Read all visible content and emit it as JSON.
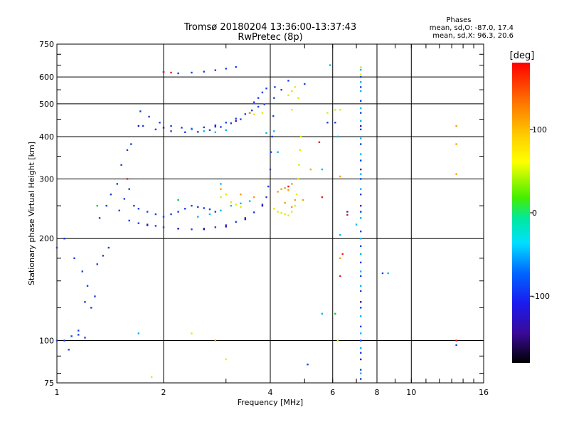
{
  "header": {
    "title": "Tromsø 20180204 13:36:00-13:37:43",
    "subtitle": "RwPretec (8p)",
    "stats_title": "Phases",
    "stats_o": "mean, sd,O: -87.0, 17.4",
    "stats_x": "mean, sd,X:  96.3, 20.6"
  },
  "chart_data": {
    "type": "scatter",
    "xlabel": "Frequency [MHz]",
    "ylabel": "Stationary phase Virtual Height [km]",
    "x_scale": "log",
    "y_scale": "log",
    "xlim": [
      1,
      16
    ],
    "ylim": [
      75,
      750
    ],
    "grid": true,
    "x_ticks": [
      1,
      2,
      4,
      6,
      8,
      10,
      16
    ],
    "x_tick_labels": [
      "1",
      "2",
      "4",
      "6",
      "8",
      "10",
      "16"
    ],
    "y_ticks": [
      75,
      100,
      200,
      300,
      400,
      500,
      600,
      750
    ],
    "y_tick_labels": [
      "75",
      "100",
      "200",
      "300",
      "400",
      "500",
      "600",
      "750"
    ],
    "colorbar": {
      "label": "[deg]",
      "range": [
        -180,
        180
      ],
      "ticks": [
        100,
        0,
        -100
      ],
      "tick_labels": [
        "100",
        "0",
        "-100"
      ]
    },
    "series": [
      {
        "color": "#1a3fe0",
        "points": [
          [
            1.0,
            100
          ],
          [
            1.05,
            100
          ],
          [
            1.1,
            103
          ],
          [
            1.15,
            104
          ],
          [
            1.2,
            102
          ],
          [
            1.15,
            107
          ],
          [
            1.08,
            94
          ],
          [
            1.0,
            188
          ],
          [
            1.05,
            200
          ],
          [
            1.12,
            175
          ],
          [
            1.18,
            160
          ],
          [
            1.22,
            145
          ],
          [
            1.28,
            135
          ],
          [
            1.3,
            168
          ],
          [
            1.35,
            178
          ],
          [
            1.4,
            188
          ],
          [
            1.25,
            125
          ],
          [
            1.2,
            130
          ],
          [
            1.32,
            230
          ],
          [
            1.38,
            250
          ],
          [
            1.42,
            270
          ],
          [
            1.48,
            290
          ],
          [
            1.52,
            330
          ],
          [
            1.58,
            365
          ],
          [
            1.62,
            380
          ],
          [
            1.5,
            242
          ],
          [
            1.55,
            262
          ],
          [
            1.6,
            280
          ],
          [
            1.65,
            250
          ],
          [
            1.7,
            245
          ],
          [
            1.8,
            240
          ],
          [
            1.9,
            236
          ],
          [
            2.0,
            232
          ],
          [
            2.1,
            236
          ],
          [
            2.2,
            240
          ],
          [
            2.3,
            245
          ],
          [
            2.4,
            250
          ],
          [
            2.5,
            248
          ],
          [
            2.6,
            246
          ],
          [
            2.7,
            244
          ],
          [
            2.8,
            240
          ],
          [
            1.6,
            226
          ],
          [
            1.7,
            222
          ],
          [
            1.8,
            220
          ],
          [
            1.9,
            218
          ],
          [
            2.0,
            216
          ],
          [
            2.2,
            214
          ],
          [
            2.4,
            213
          ],
          [
            2.6,
            214
          ],
          [
            2.8,
            216
          ],
          [
            3.0,
            219
          ],
          [
            3.2,
            224
          ],
          [
            3.4,
            230
          ],
          [
            3.6,
            239
          ],
          [
            3.8,
            252
          ],
          [
            3.9,
            265
          ],
          [
            3.95,
            285
          ],
          [
            4.0,
            320
          ],
          [
            4.02,
            360
          ],
          [
            4.05,
            400
          ],
          [
            4.08,
            460
          ],
          [
            4.1,
            520
          ],
          [
            4.12,
            560
          ],
          [
            1.72,
            475
          ],
          [
            1.82,
            458
          ],
          [
            1.95,
            440
          ],
          [
            2.1,
            430
          ],
          [
            2.25,
            425
          ],
          [
            2.4,
            422
          ],
          [
            2.6,
            426
          ],
          [
            2.8,
            432
          ],
          [
            3.0,
            440
          ],
          [
            3.2,
            452
          ],
          [
            3.4,
            466
          ],
          [
            3.55,
            478
          ],
          [
            3.7,
            490
          ],
          [
            3.85,
            498
          ],
          [
            1.75,
            430
          ],
          [
            1.9,
            420
          ],
          [
            2.1,
            415
          ],
          [
            2.3,
            412
          ],
          [
            2.5,
            413
          ],
          [
            2.7,
            418
          ],
          [
            2.9,
            427
          ],
          [
            3.1,
            438
          ],
          [
            3.3,
            450
          ],
          [
            2.0,
            620
          ],
          [
            2.2,
            615
          ],
          [
            2.4,
            618
          ],
          [
            2.6,
            622
          ],
          [
            2.8,
            628
          ],
          [
            3.0,
            635
          ],
          [
            3.2,
            642
          ],
          [
            3.6,
            505
          ],
          [
            3.7,
            520
          ],
          [
            3.8,
            540
          ],
          [
            3.9,
            555
          ],
          [
            4.3,
            550
          ],
          [
            4.5,
            585
          ],
          [
            5.0,
            572
          ],
          [
            7.2,
            640
          ],
          [
            7.2,
            600
          ],
          [
            7.2,
            560
          ],
          [
            7.2,
            510
          ],
          [
            7.2,
            470
          ],
          [
            7.2,
            420
          ],
          [
            7.2,
            380
          ],
          [
            7.2,
            340
          ],
          [
            7.2,
            300
          ],
          [
            7.2,
            270
          ],
          [
            7.2,
            240
          ],
          [
            7.2,
            210
          ],
          [
            7.2,
            190
          ],
          [
            7.2,
            170
          ],
          [
            7.2,
            155
          ],
          [
            7.2,
            140
          ],
          [
            7.2,
            125
          ],
          [
            7.2,
            110
          ],
          [
            7.2,
            100
          ],
          [
            7.2,
            92
          ],
          [
            7.2,
            82
          ],
          [
            7.2,
            77
          ],
          [
            5.8,
            440
          ],
          [
            6.1,
            440
          ],
          [
            6.6,
            240
          ],
          [
            8.3,
            158
          ],
          [
            13.4,
            97
          ],
          [
            5.1,
            85
          ]
        ]
      },
      {
        "color": "#3b0ea6",
        "points": [
          [
            1.7,
            430
          ],
          [
            2.0,
            425
          ],
          [
            2.4,
            420
          ],
          [
            2.8,
            428
          ],
          [
            3.2,
            445
          ],
          [
            3.5,
            470
          ],
          [
            1.8,
            219
          ],
          [
            2.2,
            214
          ],
          [
            2.6,
            213
          ],
          [
            3.0,
            217
          ],
          [
            3.4,
            228
          ],
          [
            3.8,
            250
          ],
          [
            7.2,
            430
          ],
          [
            7.2,
            320
          ],
          [
            7.2,
            250
          ],
          [
            7.2,
            130
          ],
          [
            7.2,
            88
          ]
        ]
      },
      {
        "color": "#00b8f0",
        "points": [
          [
            2.4,
            420
          ],
          [
            2.6,
            415
          ],
          [
            2.8,
            412
          ],
          [
            3.0,
            418
          ],
          [
            2.5,
            232
          ],
          [
            2.7,
            236
          ],
          [
            2.9,
            242
          ],
          [
            3.1,
            250
          ],
          [
            3.3,
            254
          ],
          [
            3.5,
            258
          ],
          [
            3.9,
            410
          ],
          [
            4.1,
            415
          ],
          [
            4.2,
            360
          ],
          [
            7.2,
            630
          ],
          [
            7.2,
            580
          ],
          [
            7.2,
            545
          ],
          [
            7.2,
            485
          ],
          [
            7.2,
            445
          ],
          [
            7.2,
            395
          ],
          [
            7.2,
            355
          ],
          [
            7.2,
            310
          ],
          [
            7.2,
            280
          ],
          [
            7.2,
            230
          ],
          [
            7.2,
            200
          ],
          [
            7.2,
            180
          ],
          [
            7.2,
            160
          ],
          [
            7.2,
            145
          ],
          [
            7.2,
            118
          ],
          [
            7.2,
            105
          ],
          [
            7.2,
            95
          ],
          [
            7.2,
            80
          ],
          [
            5.6,
            320
          ],
          [
            5.6,
            120
          ],
          [
            5.9,
            650
          ],
          [
            6.2,
            400
          ],
          [
            6.3,
            205
          ],
          [
            7.0,
            220
          ],
          [
            2.9,
            290
          ],
          [
            8.6,
            158
          ],
          [
            1.7,
            105
          ]
        ]
      },
      {
        "color": "#00c850",
        "points": [
          [
            1.3,
            250
          ],
          [
            2.2,
            260
          ],
          [
            6.1,
            120
          ]
        ]
      },
      {
        "color": "#e8e800",
        "points": [
          [
            2.9,
            265
          ],
          [
            3.0,
            270
          ],
          [
            3.1,
            256
          ],
          [
            3.2,
            252
          ],
          [
            3.3,
            248
          ],
          [
            3.6,
            465
          ],
          [
            3.8,
            470
          ],
          [
            4.1,
            245
          ],
          [
            4.2,
            240
          ],
          [
            4.3,
            238
          ],
          [
            4.4,
            236
          ],
          [
            4.5,
            234
          ],
          [
            4.6,
            240
          ],
          [
            4.7,
            250
          ],
          [
            4.75,
            270
          ],
          [
            4.8,
            300
          ],
          [
            4.82,
            330
          ],
          [
            4.85,
            365
          ],
          [
            4.88,
            400
          ],
          [
            4.5,
            530
          ],
          [
            4.6,
            545
          ],
          [
            4.7,
            560
          ],
          [
            4.8,
            520
          ],
          [
            4.6,
            480
          ],
          [
            7.2,
            640
          ],
          [
            7.2,
            610
          ],
          [
            5.8,
            470
          ],
          [
            6.1,
            480
          ],
          [
            6.3,
            480
          ],
          [
            2.4,
            105
          ],
          [
            3.0,
            88
          ],
          [
            6.2,
            100
          ],
          [
            1.85,
            78
          ]
        ]
      },
      {
        "color": "#f5a000",
        "points": [
          [
            2.9,
            280
          ],
          [
            3.3,
            270
          ],
          [
            3.6,
            265
          ],
          [
            4.2,
            275
          ],
          [
            4.3,
            280
          ],
          [
            4.4,
            282
          ],
          [
            4.5,
            278
          ],
          [
            4.6,
            290
          ],
          [
            4.7,
            260
          ],
          [
            4.4,
            255
          ],
          [
            4.6,
            248
          ],
          [
            4.95,
            260
          ],
          [
            3.5,
            470
          ],
          [
            13.4,
            380
          ],
          [
            13.4,
            430
          ],
          [
            5.2,
            320
          ],
          [
            6.3,
            175
          ],
          [
            6.3,
            305
          ],
          [
            2.8,
            100
          ],
          [
            13.4,
            310
          ]
        ]
      },
      {
        "color": "#e81818",
        "points": [
          [
            2.0,
            620
          ],
          [
            2.1,
            618
          ],
          [
            4.5,
            285
          ],
          [
            5.6,
            265
          ],
          [
            6.3,
            155
          ],
          [
            6.4,
            180
          ],
          [
            13.4,
            100
          ],
          [
            6.6,
            235
          ],
          [
            5.5,
            385
          ],
          [
            1.58,
            300
          ]
        ]
      }
    ]
  }
}
